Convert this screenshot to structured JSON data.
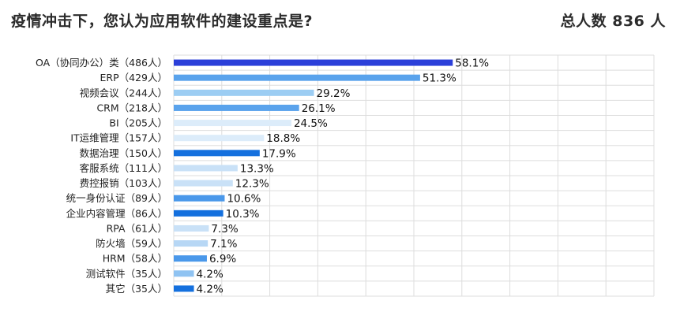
{
  "header": {
    "title": "疫情冲击下，您认为应用软件的建设重点是?",
    "total": "总人数 836 人"
  },
  "chart_data": {
    "type": "bar",
    "orientation": "horizontal",
    "title": "疫情冲击下，您认为应用软件的建设重点是?",
    "xlabel": "",
    "ylabel": "",
    "xlim": [
      0,
      100
    ],
    "grid": true,
    "categories": [
      "OA（协同办公）类（486人）",
      "ERP（429人）",
      "视频会议（244人）",
      "CRM（218人）",
      "BI（205人）",
      "IT运维管理（157人）",
      "数据治理（150人）",
      "客服系统（111人）",
      "费控报销（103人）",
      "统一身份认证（89人）",
      "企业内容管理（86人）",
      "RPA（61人）",
      "防火墙（59人）",
      "HRM（58人）",
      "测试软件（35人）",
      "其它（35人）"
    ],
    "values": [
      58.1,
      51.3,
      29.2,
      26.1,
      24.5,
      18.8,
      17.9,
      13.3,
      12.3,
      10.6,
      10.3,
      7.3,
      7.1,
      6.9,
      4.2,
      4.2
    ],
    "value_labels": [
      "58.1%",
      "51.3%",
      "29.2%",
      "26.1%",
      "24.5%",
      "18.8%",
      "17.9%",
      "13.3%",
      "12.3%",
      "10.6%",
      "10.3%",
      "7.3%",
      "7.1%",
      "6.9%",
      "4.2%",
      "4.2%"
    ],
    "bar_colors": [
      "#2b3fd9",
      "#5aa3ec",
      "#9ccdf3",
      "#5aa3ec",
      "#dcecfa",
      "#dcecfa",
      "#1470de",
      "#c9e1f7",
      "#c9e1f7",
      "#4a98ea",
      "#1470de",
      "#c9e1f7",
      "#b7d7f5",
      "#4a98ea",
      "#8fc3f2",
      "#1470de"
    ],
    "grid_color": "#dddddd"
  }
}
